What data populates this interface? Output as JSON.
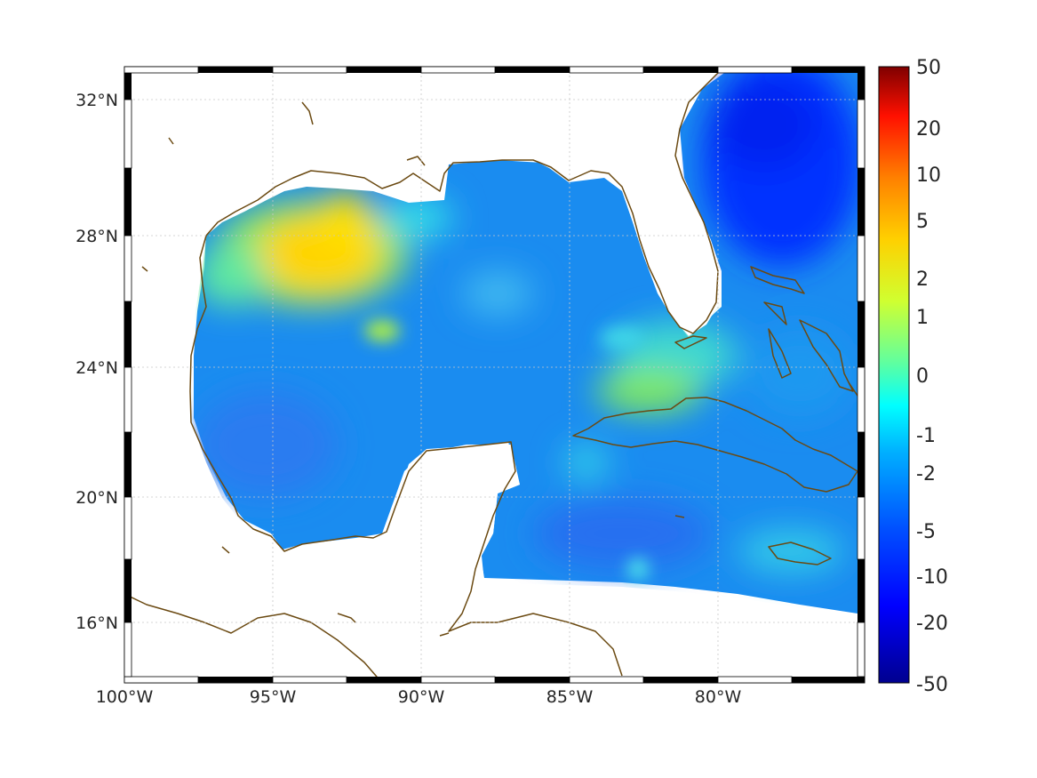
{
  "map": {
    "lon_range": [
      -100,
      -75.2
    ],
    "lat_range": [
      14.3,
      32.9
    ],
    "lon_ticks": [
      "100°W",
      "95°W",
      "90°W",
      "85°W",
      "80°W"
    ],
    "lat_ticks": [
      "32°N",
      "28°N",
      "24°N",
      "20°N",
      "16°N"
    ],
    "grid": "on",
    "land_color": "#ffffff",
    "coastline_color": "#6b4a12"
  },
  "colorbar": {
    "labels": [
      "50",
      "20",
      "10",
      "5",
      "2",
      "1",
      "0",
      "-1",
      "-2",
      "-5",
      "-10",
      "-20",
      "-50"
    ],
    "colormap": "jet",
    "colors": [
      "#7f0000",
      "#ff0000",
      "#ff8000",
      "#ffff00",
      "#80ff80",
      "#00ffff",
      "#0080ff",
      "#0000ff",
      "#00008f"
    ]
  }
}
